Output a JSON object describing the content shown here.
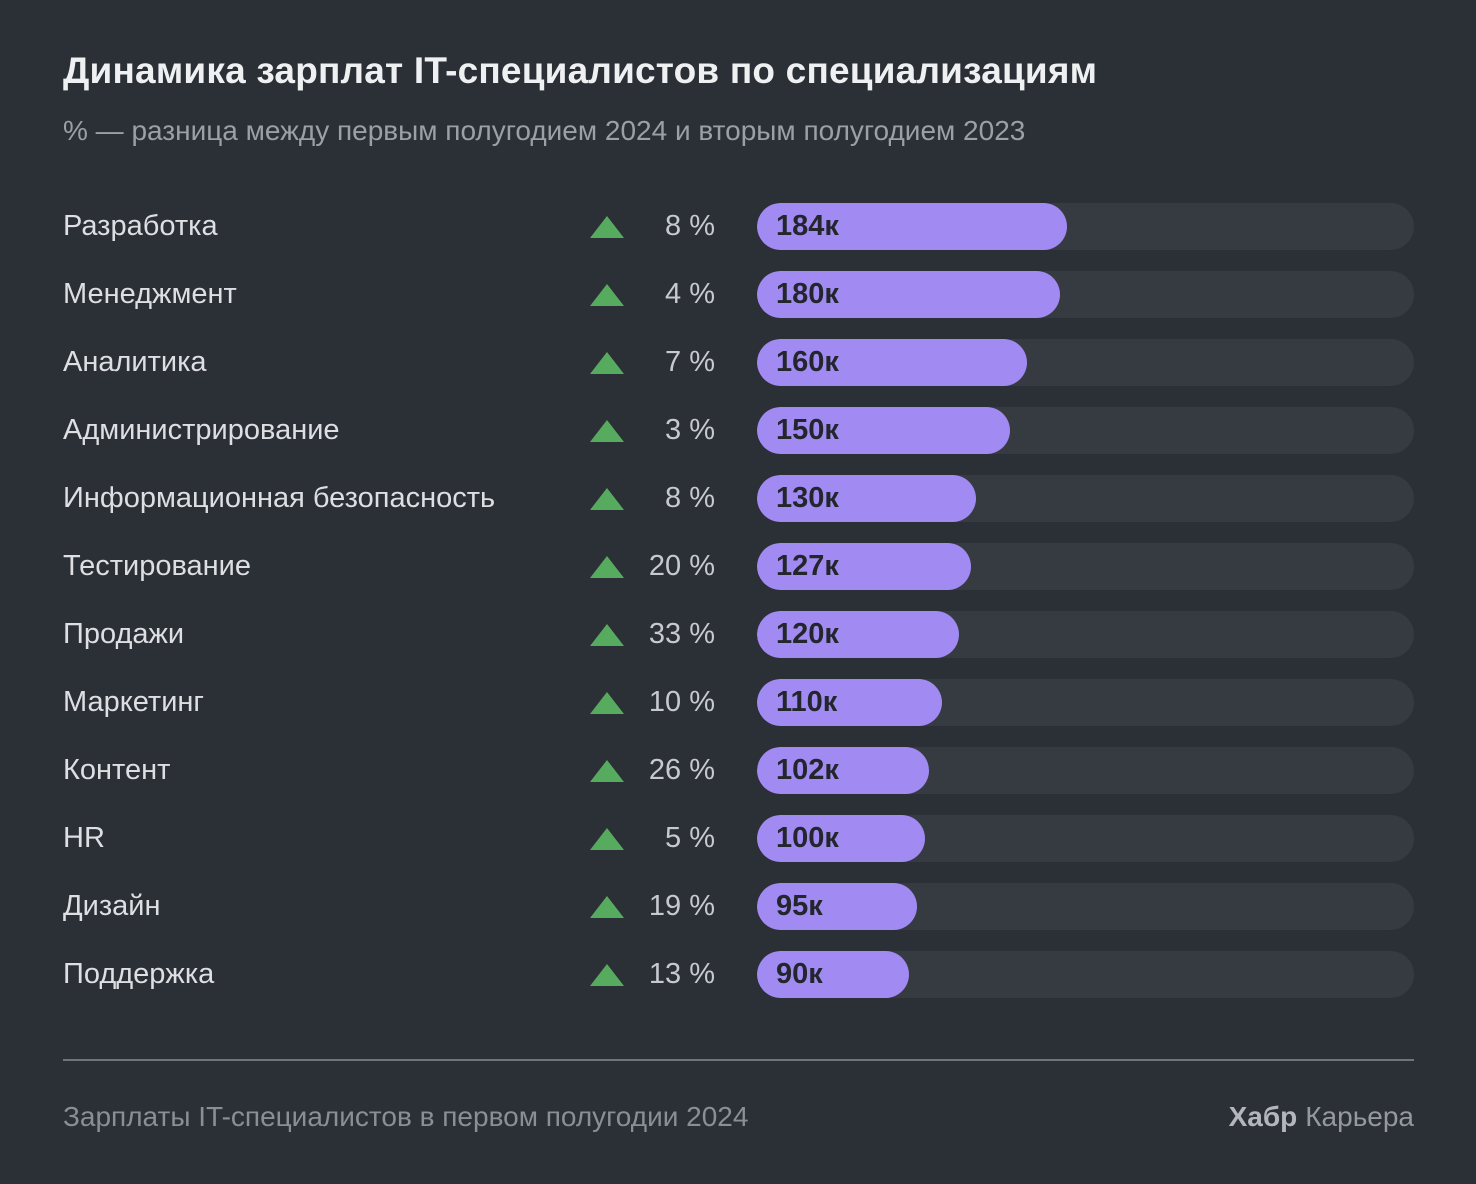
{
  "title": "Динамика зарплат IT-специалистов по специализациям",
  "subtitle": "% — разница между первым полугодием 2024 и вторым полугодием 2023",
  "footer": {
    "source": "Зарплаты IT-специалистов в первом полугодии 2024",
    "brand_bold": "Хабр",
    "brand_regular": "Карьера"
  },
  "colors": {
    "background": "#2b2f36",
    "bar_track": "#363b42",
    "bar_fill": "#a18bf2",
    "bar_label_text": "#23262d",
    "arrow_green": "#56ab5e"
  },
  "icons": {
    "up_arrow": "triangle-up"
  },
  "chart_data": {
    "type": "bar",
    "orientation": "horizontal",
    "title": "Динамика зарплат IT-специалистов по специализациям",
    "subtitle": "% — разница между первым полугодием 2024 и вторым полугодием 2023",
    "categories": [
      "Разработка",
      "Менеджмент",
      "Аналитика",
      "Администрирование",
      "Информационная безопасность",
      "Тестирование",
      "Продажи",
      "Маркетинг",
      "Контент",
      "HR",
      "Дизайн",
      "Поддержка"
    ],
    "series": [
      {
        "name": "salary_thousands_rub",
        "values": [
          184,
          180,
          160,
          150,
          130,
          127,
          120,
          110,
          102,
          100,
          95,
          90
        ]
      },
      {
        "name": "change_percent",
        "values": [
          8,
          4,
          7,
          3,
          8,
          20,
          33,
          10,
          26,
          5,
          19,
          13
        ]
      }
    ],
    "bar_labels": [
      "184к",
      "180к",
      "160к",
      "150к",
      "130к",
      "127к",
      "120к",
      "110к",
      "102к",
      "100к",
      "95к",
      "90к"
    ],
    "pct_labels": [
      "8 %",
      "4 %",
      "7 %",
      "3 %",
      "8 %",
      "20 %",
      "33 %",
      "10 %",
      "26 %",
      "5 %",
      "19 %",
      "13 %"
    ],
    "xlim": [
      0,
      390
    ],
    "grid": false,
    "legend": false
  }
}
